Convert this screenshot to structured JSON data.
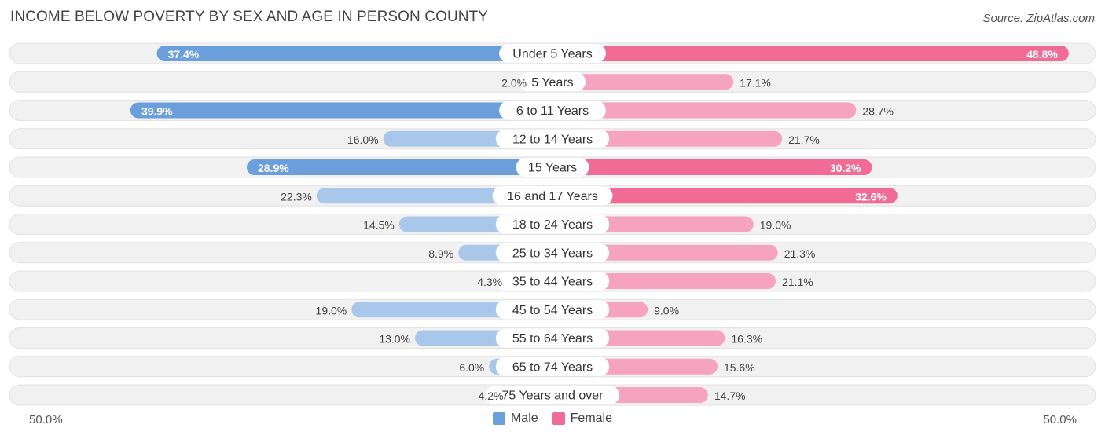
{
  "title": "INCOME BELOW POVERTY BY SEX AND AGE IN PERSON COUNTY",
  "source": "Source: ZipAtlas.com",
  "colors": {
    "male_strong": "#6a9fdc",
    "male_light": "#a8c7eb",
    "female_strong": "#f06c97",
    "female_light": "#f5a3bf",
    "track": "#f1f1f1",
    "track_border": "#e2e2e2"
  },
  "chart_data": {
    "type": "bar",
    "orientation": "horizontal-diverging",
    "title": "INCOME BELOW POVERTY BY SEX AND AGE IN PERSON COUNTY",
    "categories": [
      "Under 5 Years",
      "5 Years",
      "6 to 11 Years",
      "12 to 14 Years",
      "15 Years",
      "16 and 17 Years",
      "18 to 24 Years",
      "25 to 34 Years",
      "35 to 44 Years",
      "45 to 54 Years",
      "55 to 64 Years",
      "65 to 74 Years",
      "75 Years and over"
    ],
    "series": [
      {
        "name": "Male",
        "values": [
          37.4,
          2.0,
          39.9,
          16.0,
          28.9,
          22.3,
          14.5,
          8.9,
          4.3,
          19.0,
          13.0,
          6.0,
          4.2
        ]
      },
      {
        "name": "Female",
        "values": [
          48.8,
          17.1,
          28.7,
          21.7,
          30.2,
          32.6,
          19.0,
          21.3,
          21.1,
          9.0,
          16.3,
          15.6,
          14.7
        ]
      }
    ],
    "value_labels": {
      "Male": [
        "37.4%",
        "2.0%",
        "39.9%",
        "16.0%",
        "28.9%",
        "22.3%",
        "14.5%",
        "8.9%",
        "4.3%",
        "19.0%",
        "13.0%",
        "6.0%",
        "4.2%"
      ],
      "Female": [
        "48.8%",
        "17.1%",
        "28.7%",
        "21.7%",
        "30.2%",
        "32.6%",
        "19.0%",
        "21.3%",
        "21.1%",
        "9.0%",
        "16.3%",
        "15.6%",
        "14.7%"
      ]
    },
    "xlim": [
      -50,
      50
    ],
    "axis_left_label": "50.0%",
    "axis_right_label": "50.0%",
    "legend": [
      "Male",
      "Female"
    ],
    "legend_position": "bottom-center"
  }
}
